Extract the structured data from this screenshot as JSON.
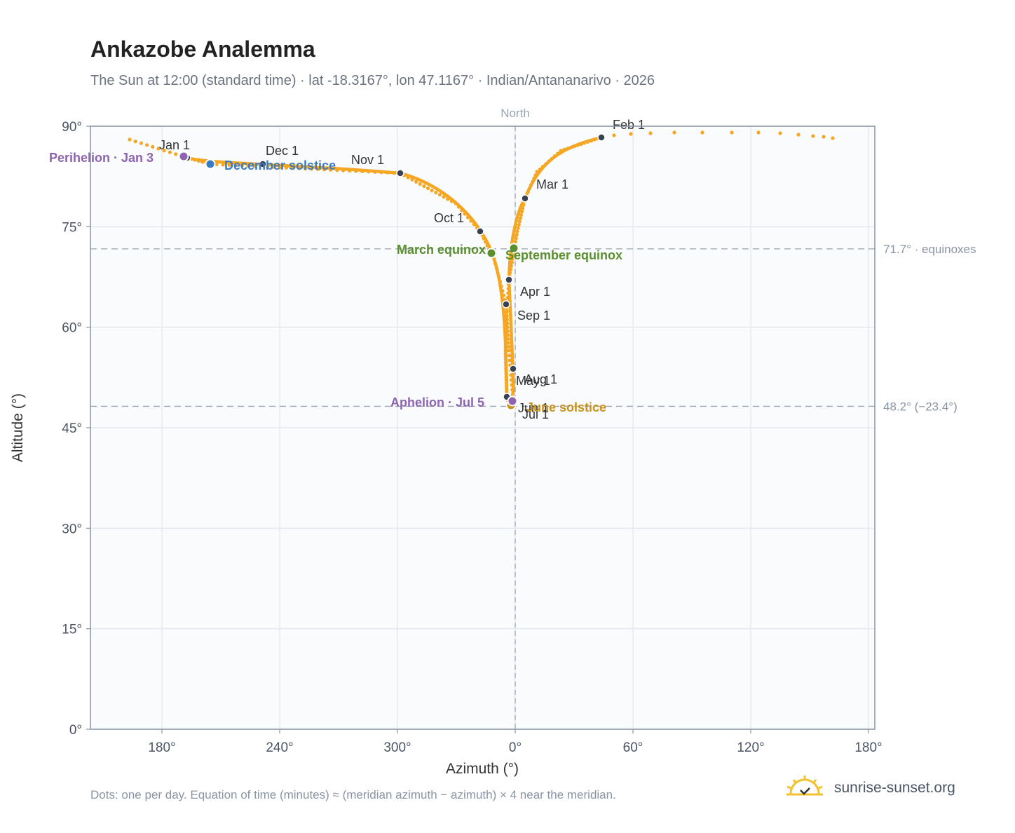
{
  "title": "Ankazobe Analemma",
  "subtitle": "The Sun at 12:00 (standard time) · lat -18.3167°, lon 47.1167° · Indian/Antananarivo · 2026",
  "footnote": "Dots: one per day. Equation of time (minutes) ≈ (meridian azimuth − azimuth) × 4 near the meridian.",
  "brand": {
    "name": "sunrise-sunset.org",
    "icon": "sun-logo-icon"
  },
  "colors": {
    "path": "#f5a623",
    "month_marker": "#374151",
    "equinox": "#5a8f2e",
    "december_solstice": "#3b7bbf",
    "june_solstice": "#c8921a",
    "apsis": "#8e63b0",
    "reference_line": "#9aa5b1",
    "grid": "#e5e9ef",
    "plot_bg": "#f9fbfd"
  },
  "chart_data": {
    "type": "scatter",
    "xlabel": "Azimuth (°)",
    "ylabel": "Altitude (°)",
    "x_tick_labels": [
      "180°",
      "240°",
      "300°",
      "0°",
      "60°",
      "120°",
      "180°"
    ],
    "y_tick_labels": [
      "0°",
      "15°",
      "30°",
      "45°",
      "60°",
      "75°",
      "90°"
    ],
    "y_ticks": [
      0,
      15,
      30,
      45,
      60,
      75,
      90
    ],
    "xlim": [
      144,
      181
    ],
    "ylim": [
      0,
      90
    ],
    "x_unwrapped_range_note": "azimuth axis runs 180° → 360°/0° → 180° through North",
    "grid": true,
    "meridian_label": "North",
    "reference_lines": [
      {
        "altitude": 71.7,
        "label": "71.7° · equinoxes"
      },
      {
        "altitude": 48.2,
        "label": "48.2° (−23.4°)"
      }
    ],
    "month_markers": [
      {
        "label": "Jan 1",
        "azimuth": 190.5,
        "altitude": 85.2
      },
      {
        "label": "Feb 1",
        "azimuth": 43.7,
        "altitude": 88.2
      },
      {
        "label": "Mar 1",
        "azimuth": 5.0,
        "altitude": 79.1
      },
      {
        "label": "Apr 1",
        "azimuth": 357.0,
        "altitude": 67.0
      },
      {
        "label": "May 1",
        "azimuth": 359.2,
        "altitude": 53.8
      },
      {
        "label": "Jun 1",
        "azimuth": 356.7,
        "altitude": 49.4
      },
      {
        "label": "Jul 1",
        "azimuth": 358.6,
        "altitude": 48.3
      },
      {
        "label": "Aug 1",
        "azimuth": 359.5,
        "altitude": 49.0
      },
      {
        "label": "Sep 1",
        "azimuth": 355.8,
        "altitude": 63.5
      },
      {
        "label": "Oct 1",
        "azimuth": 342.1,
        "altitude": 74.4
      },
      {
        "label": "Nov 1",
        "azimuth": 298.6,
        "altitude": 82.8
      },
      {
        "label": "Dec 1",
        "azimuth": 228.0,
        "altitude": 84.1
      }
    ],
    "events": [
      {
        "label": "March equinox",
        "azimuth": 347.5,
        "altitude": 71.1,
        "kind": "equinox"
      },
      {
        "label": "September equinox",
        "azimuth": 359.2,
        "altitude": 71.8,
        "kind": "equinox"
      },
      {
        "label": "June solstice",
        "azimuth": 357.4,
        "altitude": 48.2,
        "kind": "june_solstice"
      },
      {
        "label": "December solstice",
        "azimuth": 203.0,
        "altitude": 84.4,
        "kind": "december_solstice"
      },
      {
        "label": "Perihelion · Jan 3",
        "azimuth": 191.7,
        "altitude": 85.4,
        "kind": "apsis"
      },
      {
        "label": "Aphelion · Jul 5",
        "azimuth": 358.6,
        "altitude": 48.9,
        "kind": "apsis"
      }
    ]
  }
}
